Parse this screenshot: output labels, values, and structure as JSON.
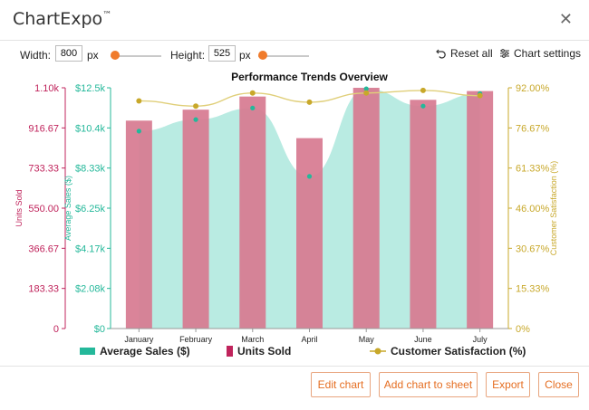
{
  "app": {
    "title": "ChartExpo",
    "trademark": "™"
  },
  "toolbar": {
    "width_label": "Width:",
    "width_value": "800",
    "width_unit": "px",
    "height_label": "Height:",
    "height_value": "525",
    "height_unit": "px",
    "reset_label": "Reset all",
    "settings_label": "Chart settings"
  },
  "footer": {
    "edit_label": "Edit chart",
    "add_label": "Add chart to sheet",
    "export_label": "Export",
    "close_label": "Close"
  },
  "colors": {
    "accent": "#f07b2b",
    "units_axis": "#c0245c",
    "sales_axis": "#24b89a",
    "satisfaction_axis": "#c8a82a",
    "bar_fill": "#d77a90",
    "area_fill": "#b9ebe2",
    "line": "#e0cf7a"
  },
  "chart_data": {
    "type": "bar",
    "title": "Performance Trends Overview",
    "categories": [
      "January",
      "February",
      "March",
      "April",
      "May",
      "June",
      "July"
    ],
    "series": [
      {
        "name": "Average Sales ($)",
        "type": "area",
        "axis": "left-inner",
        "values": [
          10250,
          10850,
          11450,
          7900,
          12450,
          11550,
          12200
        ]
      },
      {
        "name": "Units Sold",
        "type": "bar",
        "axis": "left-outer",
        "values": [
          950,
          1000,
          1060,
          870,
          1100,
          1045,
          1085
        ]
      },
      {
        "name": "Customer Satisfaction (%)",
        "type": "line",
        "axis": "right",
        "values": [
          87,
          85,
          90,
          86.5,
          90,
          91,
          89
        ]
      }
    ],
    "axes": {
      "units": {
        "label": "Units Sold",
        "ticks": [
          "1.10k",
          "916.67",
          "733.33",
          "550.00",
          "366.67",
          "183.33",
          "0"
        ],
        "ylim": [
          0,
          1100
        ]
      },
      "sales": {
        "label": "Average Sales ($)",
        "ticks": [
          "$12.5k",
          "$10.4k",
          "$8.33k",
          "$6.25k",
          "$4.17k",
          "$2.08k",
          "$0"
        ],
        "ylim": [
          0,
          12500
        ]
      },
      "satisfaction": {
        "label": "Customer Satisfaction (%)",
        "ticks": [
          "92.00%",
          "76.67%",
          "61.33%",
          "46.00%",
          "30.67%",
          "15.33%",
          "0%"
        ],
        "ylim": [
          0,
          92
        ]
      }
    },
    "legend_position": "bottom",
    "grid": false
  }
}
